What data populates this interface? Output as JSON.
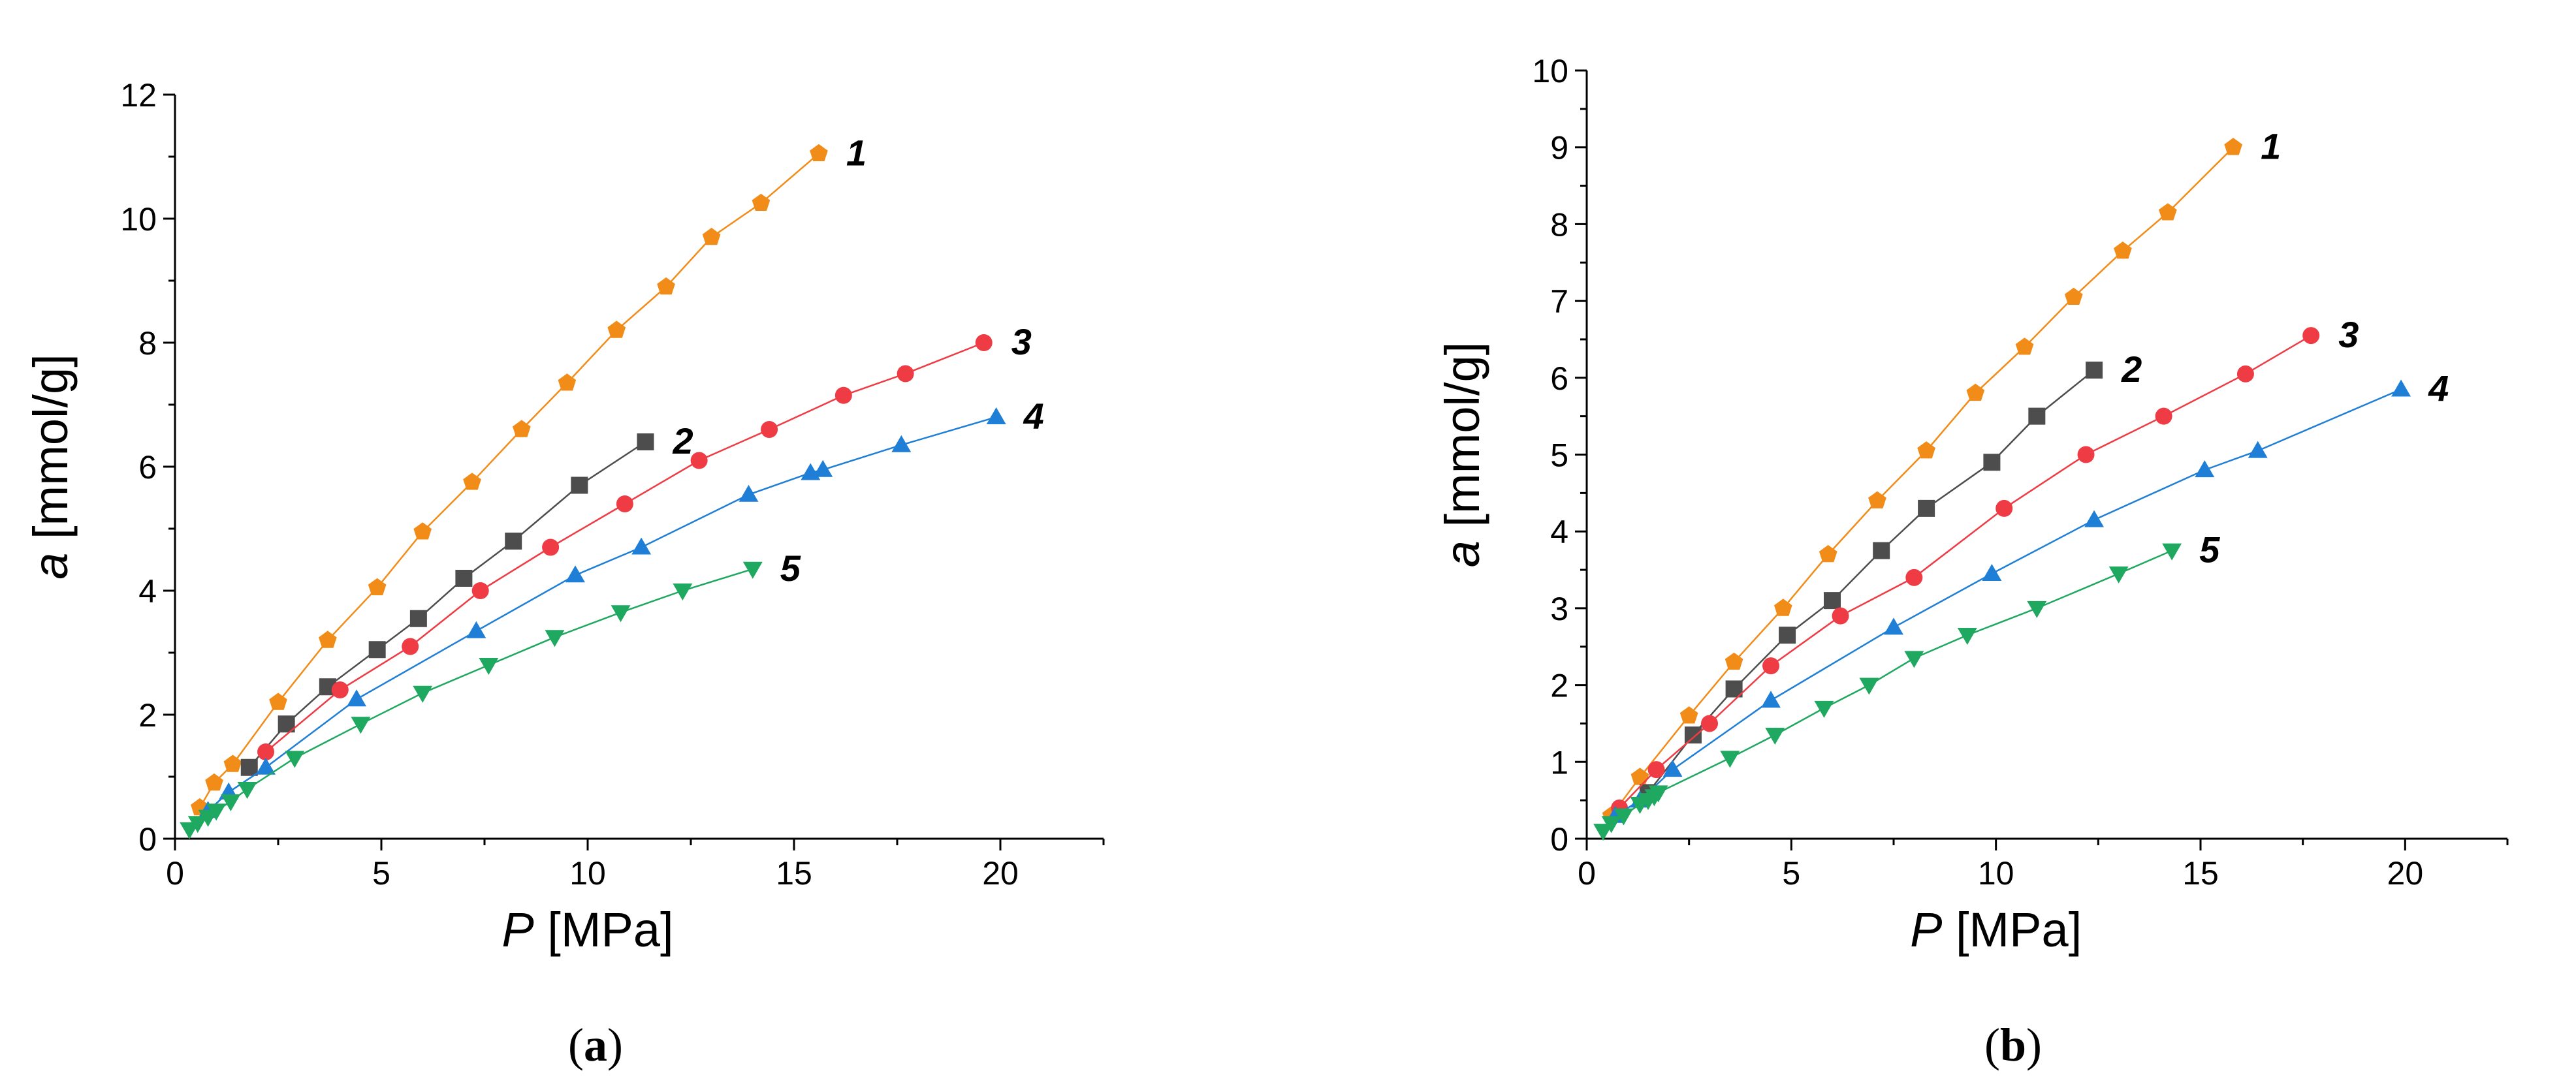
{
  "chart_data": [
    {
      "type": "line",
      "panel_label": "(a)",
      "xlabel": "P",
      "xlabel_unit": "[MPa]",
      "ylabel": "a",
      "ylabel_unit": "[mmol/g]",
      "xlim": [
        0,
        22.5
      ],
      "ylim": [
        0,
        12
      ],
      "xticks": [
        0,
        5,
        10,
        15,
        20
      ],
      "xtick_labels": [
        "0",
        "5",
        "10",
        "15",
        "20"
      ],
      "yticks": [
        0,
        2,
        4,
        6,
        8,
        10,
        12
      ],
      "ytick_labels": [
        "0",
        "2",
        "4",
        "6",
        "8",
        "10",
        "12"
      ],
      "series": [
        {
          "name": "1",
          "label": "1",
          "color": "#F28C18",
          "marker": "pentagon",
          "x": [
            0.6,
            0.95,
            1.4,
            2.5,
            3.7,
            4.9,
            6.0,
            7.2,
            8.4,
            9.5,
            10.7,
            11.9,
            13.0,
            14.2,
            15.6
          ],
          "y": [
            0.5,
            0.9,
            1.2,
            2.2,
            3.2,
            4.05,
            4.95,
            5.75,
            6.6,
            7.35,
            8.2,
            8.9,
            9.7,
            10.25,
            11.05
          ]
        },
        {
          "name": "2",
          "label": "2",
          "color": "#4D4D4D",
          "marker": "square",
          "x": [
            1.8,
            2.7,
            3.7,
            4.9,
            5.9,
            7.0,
            8.2,
            9.8,
            11.4
          ],
          "y": [
            1.15,
            1.85,
            2.45,
            3.05,
            3.55,
            4.2,
            4.8,
            5.7,
            6.4
          ]
        },
        {
          "name": "3",
          "label": "3",
          "color": "#EE3B44",
          "marker": "circle",
          "x": [
            2.2,
            4.0,
            5.7,
            7.4,
            9.1,
            10.9,
            12.7,
            14.4,
            16.2,
            17.7,
            19.6
          ],
          "y": [
            1.4,
            2.4,
            3.1,
            4.0,
            4.7,
            5.4,
            6.1,
            6.6,
            7.15,
            7.5,
            8.0
          ]
        },
        {
          "name": "4",
          "label": "4",
          "color": "#1F7FD6",
          "marker": "triangle-up",
          "x": [
            0.8,
            1.3,
            2.2,
            4.4,
            7.3,
            9.7,
            11.3,
            13.9,
            15.4,
            15.7,
            17.6,
            19.9
          ],
          "y": [
            0.45,
            0.75,
            1.15,
            2.25,
            3.35,
            4.25,
            4.7,
            5.55,
            5.9,
            5.95,
            6.35,
            6.8
          ]
        },
        {
          "name": "5",
          "label": "5",
          "color": "#1FA85F",
          "marker": "triangle-down",
          "x": [
            0.35,
            0.55,
            0.8,
            1.0,
            1.35,
            1.75,
            2.9,
            4.5,
            6.0,
            7.6,
            9.2,
            10.8,
            12.3,
            14.0
          ],
          "y": [
            0.15,
            0.25,
            0.35,
            0.45,
            0.6,
            0.8,
            1.3,
            1.85,
            2.35,
            2.8,
            3.25,
            3.65,
            4.0,
            4.35
          ]
        }
      ]
    },
    {
      "type": "line",
      "panel_label": "(b)",
      "xlabel": "P",
      "xlabel_unit": "[MPa]",
      "ylabel": "a",
      "ylabel_unit": "[mmol/g]",
      "xlim": [
        0,
        22.5
      ],
      "ylim": [
        0,
        10
      ],
      "xticks": [
        0,
        5,
        10,
        15,
        20
      ],
      "xtick_labels": [
        "0",
        "5",
        "10",
        "15",
        "20"
      ],
      "yticks": [
        0,
        1,
        2,
        3,
        4,
        5,
        6,
        7,
        8,
        9,
        10
      ],
      "ytick_labels": [
        "0",
        "1",
        "2",
        "3",
        "4",
        "5",
        "6",
        "7",
        "8",
        "9",
        "10"
      ],
      "series": [
        {
          "name": "1",
          "label": "1",
          "color": "#F28C18",
          "marker": "pentagon",
          "x": [
            0.6,
            1.3,
            2.5,
            3.6,
            4.8,
            5.9,
            7.1,
            8.3,
            9.5,
            10.7,
            11.9,
            13.1,
            14.2,
            15.8
          ],
          "y": [
            0.3,
            0.8,
            1.6,
            2.3,
            3.0,
            3.7,
            4.4,
            5.05,
            5.8,
            6.4,
            7.05,
            7.65,
            8.15,
            9.0
          ]
        },
        {
          "name": "2",
          "label": "2",
          "color": "#4D4D4D",
          "marker": "square",
          "x": [
            1.5,
            2.6,
            3.6,
            4.9,
            6.0,
            7.2,
            8.3,
            9.9,
            11.0,
            12.4
          ],
          "y": [
            0.6,
            1.35,
            1.95,
            2.65,
            3.1,
            3.75,
            4.3,
            4.9,
            5.5,
            6.1
          ]
        },
        {
          "name": "3",
          "label": "3",
          "color": "#EE3B44",
          "marker": "circle",
          "x": [
            0.8,
            1.7,
            3.0,
            4.5,
            6.2,
            8.0,
            10.2,
            12.2,
            14.1,
            16.1,
            17.7
          ],
          "y": [
            0.4,
            0.9,
            1.5,
            2.25,
            2.9,
            3.4,
            4.3,
            5.0,
            5.5,
            6.05,
            6.55
          ]
        },
        {
          "name": "4",
          "label": "4",
          "color": "#1F7FD6",
          "marker": "triangle-up",
          "x": [
            0.7,
            1.3,
            2.1,
            4.5,
            7.5,
            9.9,
            12.4,
            15.1,
            16.4,
            19.9
          ],
          "y": [
            0.3,
            0.5,
            0.9,
            1.8,
            2.75,
            3.45,
            4.15,
            4.8,
            5.05,
            5.85
          ]
        },
        {
          "name": "5",
          "label": "5",
          "color": "#1FA85F",
          "marker": "triangle-down",
          "x": [
            0.4,
            0.6,
            0.9,
            1.3,
            1.5,
            1.65,
            1.75,
            3.5,
            4.6,
            5.8,
            6.9,
            8.0,
            9.3,
            11.0,
            13.0,
            14.3
          ],
          "y": [
            0.1,
            0.2,
            0.3,
            0.45,
            0.5,
            0.55,
            0.6,
            1.05,
            1.35,
            1.7,
            2.0,
            2.35,
            2.65,
            3.0,
            3.45,
            3.75
          ]
        }
      ]
    }
  ]
}
